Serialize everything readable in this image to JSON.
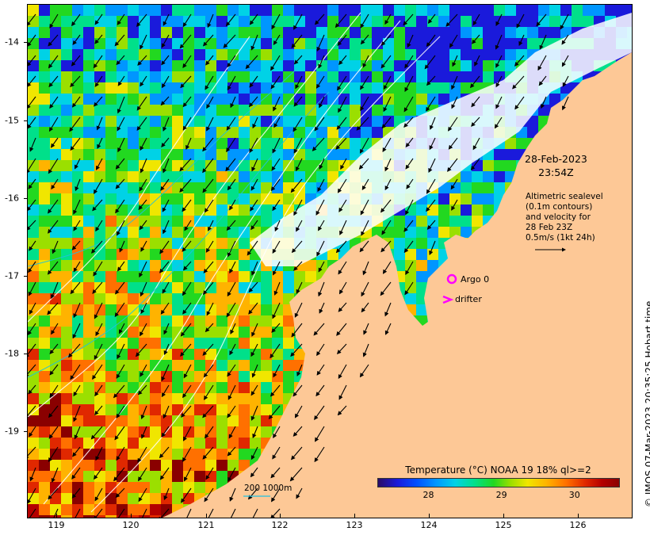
{
  "map": {
    "annotation_date": "28-Feb-2023",
    "annotation_time": "23:54Z",
    "altimetry_note": [
      "Altimetric sealevel",
      "(0.1m contours)",
      "and velocity for",
      "28 Feb 23Z",
      "0.5m/s (1kt 24h)"
    ],
    "argo_label": "Argo 0",
    "drifter_label": "drifter",
    "depth_scale_label": "200  1000m",
    "credit": "© IMOS 07-Mar-2023 20:35:25 Hobart time",
    "land_color": "#fdc896",
    "argo_color": "#ff00ff",
    "drifter_color": "#ff00ff",
    "x_ticks": [
      "119",
      "120",
      "121",
      "122",
      "123",
      "124",
      "125",
      "126"
    ],
    "y_ticks": [
      "-14",
      "-15",
      "-16",
      "-17",
      "-18",
      "-19"
    ]
  },
  "colorbar": {
    "title": "Temperature (°C) NOAA 19 18% ql>=2",
    "ticks": [
      "28",
      "29",
      "30"
    ],
    "range": [
      27.3,
      30.6
    ]
  }
}
